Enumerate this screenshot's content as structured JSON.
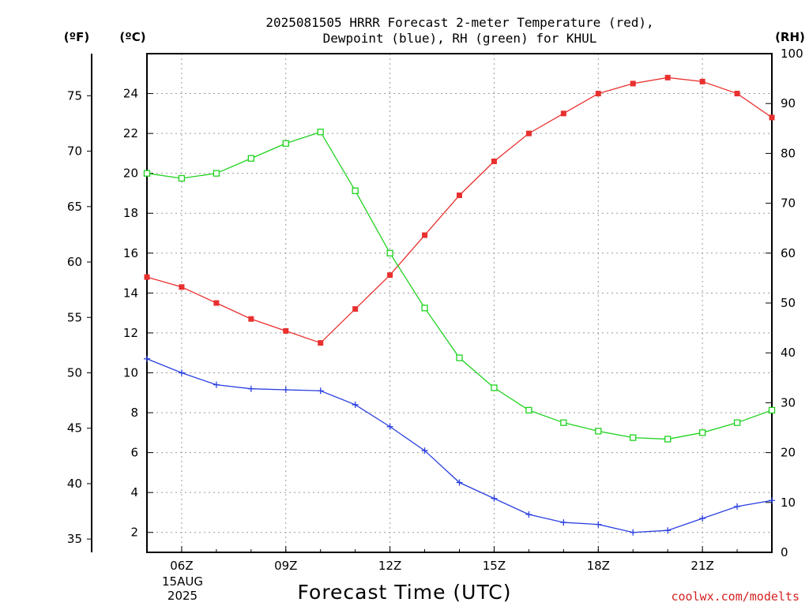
{
  "title_line1": "2025081505 HRRR Forecast 2-meter Temperature (red),",
  "title_line2": "Dewpoint (blue), RH (green) for KHUL",
  "units": {
    "fahrenheit": "(ºF)",
    "celsius": "(ºC)",
    "rh": "(RH)"
  },
  "xaxis_title": "Forecast Time (UTC)",
  "date_label": {
    "day": "15AUG",
    "year": "2025"
  },
  "credit": "coolwx.com/modelts",
  "colors": {
    "temperature": "#e8302e",
    "dewpoint": "#2a3fe0",
    "rh": "#1fd21f"
  },
  "chart_data": {
    "type": "line",
    "x": [
      "05Z",
      "06Z",
      "07Z",
      "08Z",
      "09Z",
      "10Z",
      "11Z",
      "12Z",
      "13Z",
      "14Z",
      "15Z",
      "16Z",
      "17Z",
      "18Z",
      "19Z",
      "20Z",
      "21Z",
      "22Z",
      "23Z"
    ],
    "x_tick_labels": [
      "06Z",
      "09Z",
      "12Z",
      "15Z",
      "18Z",
      "21Z"
    ],
    "xlim": [
      "05Z",
      "23Z"
    ],
    "ylim_celsius": [
      1,
      26
    ],
    "y_ticks_celsius": [
      "2",
      "4",
      "6",
      "8",
      "10",
      "12",
      "14",
      "16",
      "18",
      "20",
      "22",
      "24"
    ],
    "y_ticks_fahrenheit": [
      "35",
      "40",
      "45",
      "50",
      "55",
      "60",
      "65",
      "70",
      "75"
    ],
    "y2lim_rh": [
      0,
      100
    ],
    "y_ticks_rh": [
      "0",
      "10",
      "20",
      "30",
      "40",
      "50",
      "60",
      "70",
      "80",
      "90",
      "100"
    ],
    "grid": true,
    "series": [
      {
        "key": "temperature",
        "axis": "celsius",
        "marker": "filled-square",
        "values": [
          14.8,
          14.3,
          13.5,
          12.7,
          12.1,
          11.5,
          13.2,
          14.9,
          16.9,
          18.9,
          20.6,
          22.0,
          23.0,
          24.0,
          24.5,
          24.8,
          24.6,
          24.0,
          22.8
        ]
      },
      {
        "key": "dewpoint",
        "axis": "celsius",
        "marker": "plus",
        "values": [
          10.7,
          10.0,
          9.4,
          9.2,
          9.15,
          9.1,
          8.4,
          7.3,
          6.1,
          4.5,
          3.7,
          2.9,
          2.5,
          2.4,
          2.0,
          2.1,
          2.7,
          3.3,
          3.6
        ]
      },
      {
        "key": "rh",
        "axis": "rh",
        "marker": "open-square",
        "values": [
          76,
          75,
          76,
          79,
          82,
          84.3,
          72.5,
          60,
          49,
          39,
          33,
          28.5,
          26,
          24.3,
          23,
          22.7,
          24,
          26,
          28.5
        ]
      }
    ]
  }
}
